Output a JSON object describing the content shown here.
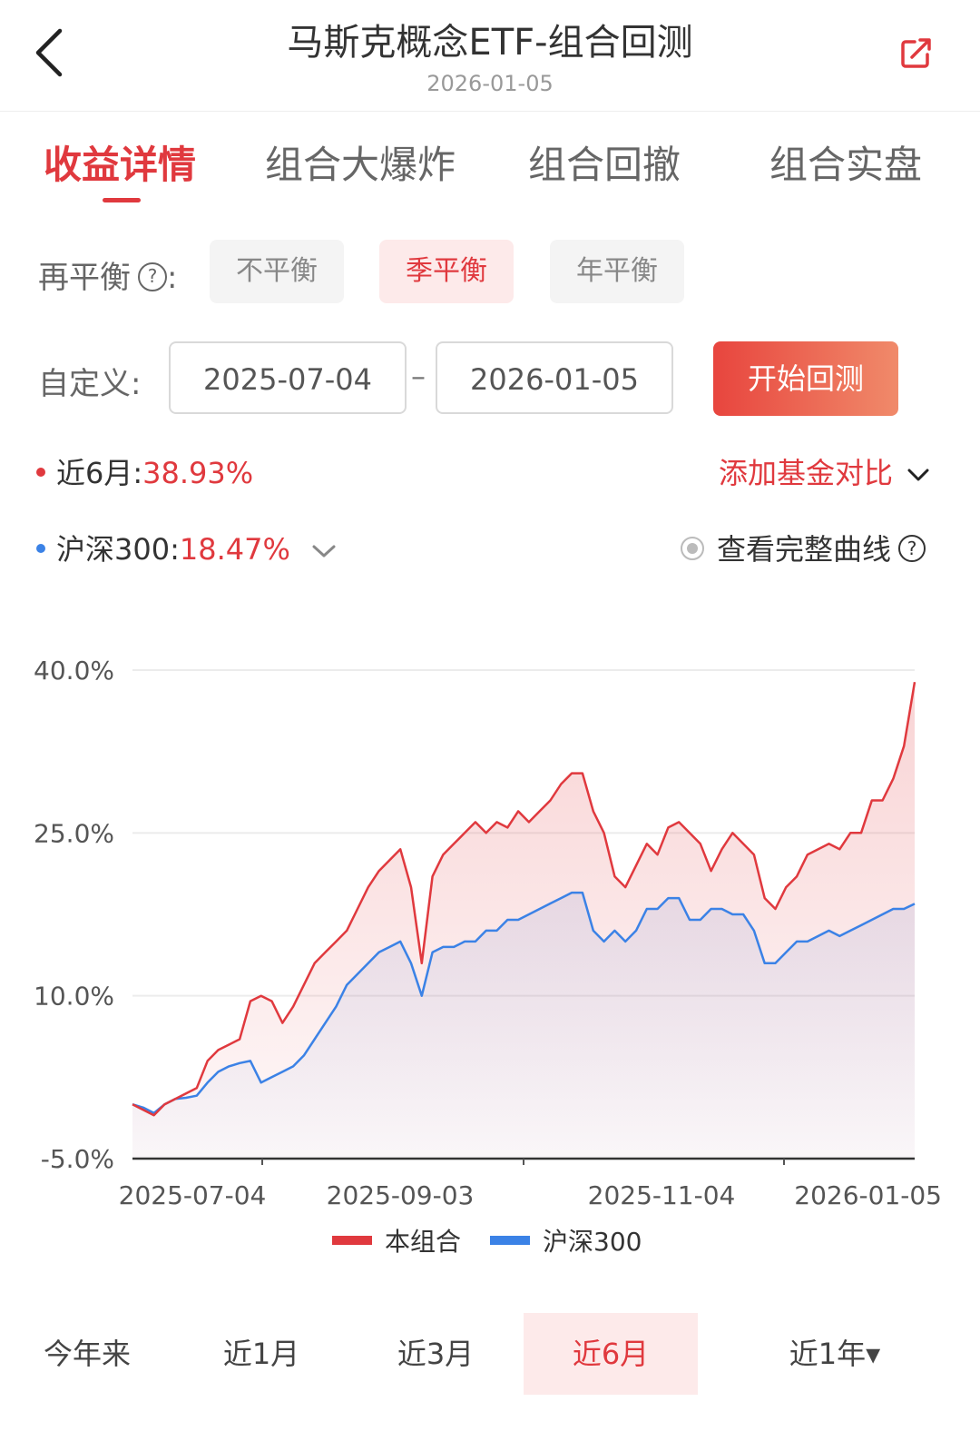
{
  "header": {
    "title": "马斯克概念ETF-组合回测",
    "date": "2026-01-05",
    "back_icon": "chevron-left-icon",
    "share_icon": "share-icon"
  },
  "tabs": [
    {
      "label": "收益详情",
      "active": true
    },
    {
      "label": "组合大爆炸",
      "active": false
    },
    {
      "label": "组合回撤",
      "active": false
    },
    {
      "label": "组合实盘",
      "active": false
    }
  ],
  "rebalance": {
    "label": "再平衡",
    "suffix": ":",
    "options": [
      {
        "label": "不平衡",
        "active": false
      },
      {
        "label": "季平衡",
        "active": true
      },
      {
        "label": "年平衡",
        "active": false
      }
    ]
  },
  "custom": {
    "label": "自定义:",
    "start": "2025-07-04",
    "end": "2026-01-05",
    "button": "开始回测"
  },
  "stats": {
    "portfolio_label": "近6月:",
    "portfolio_value": "38.93%",
    "portfolio_color": "#e0393e",
    "benchmark_label": "沪深300:",
    "benchmark_value": "18.47%",
    "benchmark_color": "#3b82e6",
    "compare_label": "添加基金对比",
    "full_curve_label": "查看完整曲线"
  },
  "chart_data": {
    "type": "line",
    "y_ticks": [
      "40.0%",
      "25.0%",
      "10.0%",
      "-5.0%"
    ],
    "ylim": [
      -5,
      40
    ],
    "x_tick_labels": [
      "2025-07-04",
      "2025-09-03",
      "2025-11-04",
      "2026-01-05"
    ],
    "grid": true,
    "series": [
      {
        "name": "本组合",
        "color": "#e0393e",
        "values": [
          0,
          -0.5,
          -1,
          0,
          0.5,
          1,
          1.5,
          4,
          5,
          5.5,
          6,
          9.5,
          10,
          9.5,
          7.5,
          9,
          11,
          13,
          14,
          15,
          16,
          18,
          20,
          21.5,
          22.5,
          23.5,
          20,
          13,
          21,
          23,
          24,
          25,
          26,
          25,
          26,
          25.5,
          27,
          26,
          27,
          28,
          29.5,
          30.5,
          30.5,
          27,
          25,
          21,
          20,
          22,
          24,
          23,
          25.5,
          26,
          25,
          24,
          21.5,
          23.5,
          25,
          24,
          23,
          19,
          18,
          20,
          21,
          23,
          23.5,
          24,
          23.5,
          25,
          25,
          28,
          28,
          30,
          33,
          38.9
        ]
      },
      {
        "name": "沪深300",
        "color": "#3b82e6",
        "values": [
          0,
          -0.3,
          -0.8,
          0,
          0.5,
          0.6,
          0.8,
          2,
          3,
          3.5,
          3.8,
          4,
          2,
          2.5,
          3,
          3.5,
          4.5,
          6,
          7.5,
          9,
          11,
          12,
          13,
          14,
          14.5,
          15,
          13,
          10,
          14,
          14.5,
          14.5,
          15,
          15,
          16,
          16,
          17,
          17,
          17.5,
          18,
          18.5,
          19,
          19.5,
          19.5,
          16,
          15,
          16,
          15,
          16,
          18,
          18,
          19,
          19,
          17,
          17,
          18,
          18,
          17.5,
          17.5,
          16,
          13,
          13,
          14,
          15,
          15,
          15.5,
          16,
          15.5,
          16,
          16.5,
          17,
          17.5,
          18,
          18,
          18.47
        ]
      }
    ]
  },
  "legend": [
    {
      "label": "本组合",
      "color": "#e0393e"
    },
    {
      "label": "沪深300",
      "color": "#3b82e6"
    }
  ],
  "periods": [
    {
      "label": "今年来",
      "active": false
    },
    {
      "label": "近1月",
      "active": false
    },
    {
      "label": "近3月",
      "active": false
    },
    {
      "label": "近6月",
      "active": true
    },
    {
      "label": "近1年▾",
      "active": false
    }
  ]
}
